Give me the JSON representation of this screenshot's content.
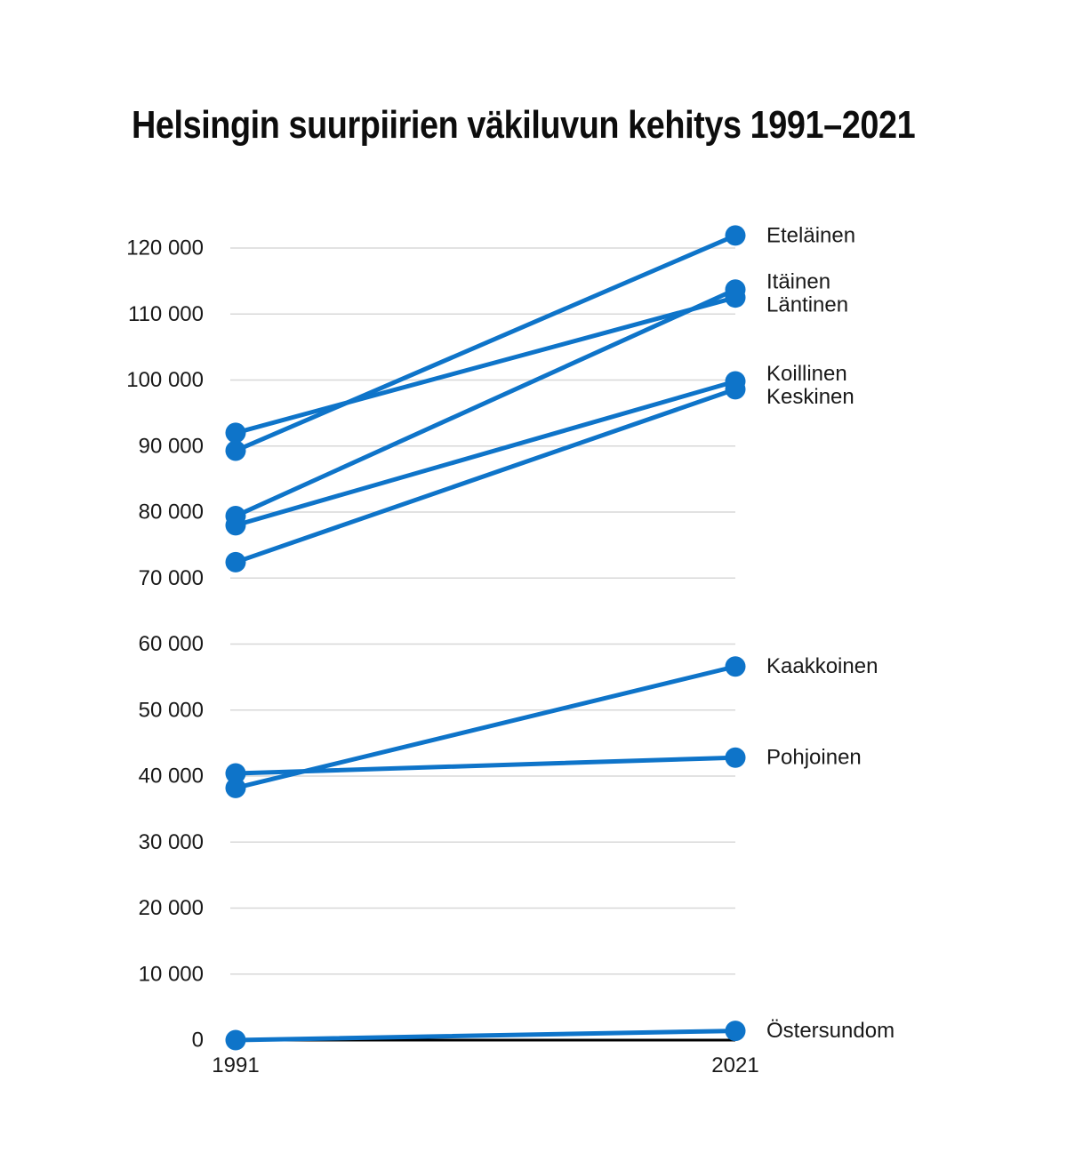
{
  "title": "Helsingin suurpiirien väkiluvun kehitys 1991–2021",
  "colors": {
    "line": "#0e74c9",
    "grid": "#d8d8d8",
    "axis": "#000000",
    "text": "#191919",
    "background": "#ffffff"
  },
  "chart_data": {
    "type": "line",
    "subtype": "slope-chart",
    "title": "Helsingin suurpiirien väkiluvun kehitys 1991–2021",
    "xlabel": "",
    "ylabel": "",
    "x": [
      1991,
      2021
    ],
    "x_tick_labels": [
      "1991",
      "2021"
    ],
    "ylim": [
      0,
      120000
    ],
    "yticks": [
      0,
      10000,
      20000,
      30000,
      40000,
      50000,
      60000,
      70000,
      80000,
      90000,
      100000,
      110000,
      120000
    ],
    "ytick_labels": [
      "0",
      "10 000",
      "20 000",
      "30 000",
      "40 000",
      "50 000",
      "60 000",
      "70 000",
      "80 000",
      "90 000",
      "100 000",
      "110 000",
      "120 000"
    ],
    "grid": true,
    "legend_position": "labels-at-line-ends-right",
    "series": [
      {
        "name": "Eteläinen",
        "values": [
          89300,
          121900
        ]
      },
      {
        "name": "Itäinen",
        "values": [
          79400,
          113700
        ]
      },
      {
        "name": "Läntinen",
        "values": [
          92000,
          112500
        ]
      },
      {
        "name": "Koillinen",
        "values": [
          78000,
          99800
        ]
      },
      {
        "name": "Keskinen",
        "values": [
          72400,
          98600
        ]
      },
      {
        "name": "Kaakkoinen",
        "values": [
          38200,
          56600
        ]
      },
      {
        "name": "Pohjoinen",
        "values": [
          40400,
          42800
        ]
      },
      {
        "name": "Östersundom",
        "values": [
          0,
          1400
        ]
      }
    ]
  }
}
